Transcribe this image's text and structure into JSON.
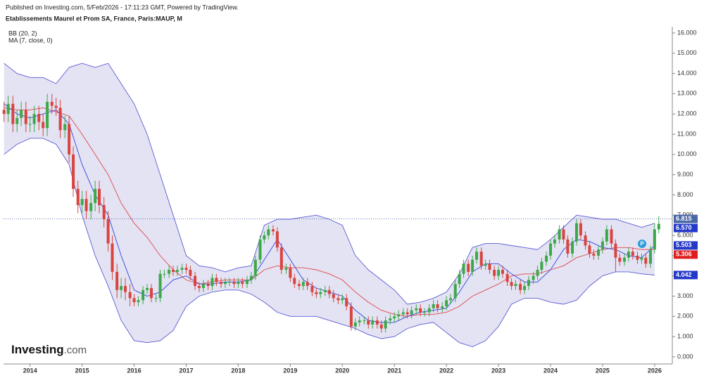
{
  "chart_data": {
    "type": "candlestick",
    "header": "Published on Investing.com, 5/Feb/2026 - 17:11:23 GMT, Powered by TradingView.",
    "title": "Etablissements Maurel et Prom SA, France, Paris:MAUP, M",
    "indicators": [
      "BB (20, 2)",
      "MA (7, close, 0)"
    ],
    "logo": "Investing",
    "logo_suffix": ".com",
    "up_color": "#3da84a",
    "down_color": "#d9443f",
    "x": [
      2013.5,
      2013.58,
      2013.67,
      2013.75,
      2013.83,
      2013.92,
      2014,
      2014.08,
      2014.17,
      2014.25,
      2014.33,
      2014.42,
      2014.5,
      2014.58,
      2014.67,
      2014.75,
      2014.83,
      2014.92,
      2015,
      2015.08,
      2015.17,
      2015.25,
      2015.33,
      2015.42,
      2015.5,
      2015.58,
      2015.67,
      2015.75,
      2015.83,
      2015.92,
      2016,
      2016.08,
      2016.17,
      2016.25,
      2016.33,
      2016.42,
      2016.5,
      2016.58,
      2016.67,
      2016.75,
      2016.83,
      2016.92,
      2017,
      2017.08,
      2017.17,
      2017.25,
      2017.33,
      2017.42,
      2017.5,
      2017.58,
      2017.67,
      2017.75,
      2017.83,
      2017.92,
      2018,
      2018.08,
      2018.17,
      2018.25,
      2018.33,
      2018.42,
      2018.5,
      2018.58,
      2018.67,
      2018.75,
      2018.83,
      2018.92,
      2019,
      2019.08,
      2019.17,
      2019.25,
      2019.33,
      2019.42,
      2019.5,
      2019.58,
      2019.67,
      2019.75,
      2019.83,
      2019.92,
      2020,
      2020.08,
      2020.17,
      2020.25,
      2020.33,
      2020.42,
      2020.5,
      2020.58,
      2020.67,
      2020.75,
      2020.83,
      2020.92,
      2021,
      2021.08,
      2021.17,
      2021.25,
      2021.33,
      2021.42,
      2021.5,
      2021.58,
      2021.67,
      2021.75,
      2021.83,
      2021.92,
      2022,
      2022.08,
      2022.17,
      2022.25,
      2022.33,
      2022.42,
      2022.5,
      2022.58,
      2022.67,
      2022.75,
      2022.83,
      2022.92,
      2023,
      2023.08,
      2023.17,
      2023.25,
      2023.33,
      2023.42,
      2023.5,
      2023.58,
      2023.67,
      2023.75,
      2023.83,
      2023.92,
      2024,
      2024.08,
      2024.17,
      2024.25,
      2024.33,
      2024.42,
      2024.5,
      2024.58,
      2024.67,
      2024.75,
      2024.83,
      2024.92,
      2025,
      2025.08,
      2025.17,
      2025.25,
      2025.33,
      2025.42,
      2025.5,
      2025.58,
      2025.67,
      2025.75,
      2025.83,
      2025.92,
      2026,
      2026.08
    ],
    "open": [
      12.2,
      12.0,
      12.5,
      11.5,
      11.8,
      12.2,
      11.5,
      11.5,
      12.0,
      11.6,
      11.3,
      12.6,
      12.4,
      12.3,
      11.2,
      11.5,
      10.0,
      8.3,
      7.5,
      7.8,
      7.2,
      7.6,
      8.3,
      7.5,
      6.8,
      5.6,
      4.2,
      3.3,
      3.5,
      3.2,
      2.9,
      2.7,
      2.8,
      3.3,
      3.4,
      2.9,
      2.9,
      4.1,
      4.1,
      4.3,
      4.2,
      4.3,
      4.4,
      4.3,
      4.0,
      3.5,
      3.4,
      3.6,
      3.5,
      3.9,
      3.7,
      3.6,
      3.7,
      3.7,
      3.6,
      3.7,
      3.6,
      3.8,
      4.0,
      4.8,
      5.8,
      6.0,
      6.3,
      6.2,
      5.4,
      4.3,
      4.4,
      3.9,
      3.6,
      3.5,
      3.7,
      3.5,
      3.2,
      3.1,
      3.2,
      3.3,
      3.1,
      2.9,
      2.8,
      2.9,
      2.5,
      1.5,
      1.7,
      1.8,
      1.8,
      1.6,
      1.8,
      1.6,
      1.4,
      1.8,
      1.9,
      2.0,
      2.1,
      2.2,
      2.1,
      2.3,
      2.4,
      2.2,
      2.2,
      2.4,
      2.6,
      2.4,
      2.5,
      2.8,
      2.9,
      3.6,
      4.1,
      4.6,
      4.2,
      4.8,
      5.2,
      4.5,
      4.6,
      4.3,
      4.0,
      4.3,
      4.1,
      3.7,
      3.5,
      3.6,
      3.3,
      3.5,
      3.8,
      4.0,
      4.3,
      4.7,
      5.0,
      5.6,
      5.8,
      6.3,
      5.8,
      5.1,
      5.7,
      6.6,
      6.0,
      5.5,
      5.1,
      5.0,
      5.3,
      5.7,
      6.3,
      5.6,
      4.9,
      4.7,
      4.9,
      5.2,
      5.0,
      4.8,
      4.9,
      4.6,
      5.3,
      6.3
    ],
    "high": [
      12.6,
      12.9,
      12.9,
      12.2,
      12.6,
      12.6,
      11.9,
      12.4,
      12.4,
      12.0,
      13.0,
      13.0,
      12.8,
      12.7,
      11.9,
      11.9,
      10.4,
      8.7,
      8.2,
      8.2,
      8.0,
      8.7,
      8.7,
      7.9,
      7.2,
      6.0,
      4.6,
      3.9,
      3.9,
      3.6,
      3.1,
      3.0,
      3.5,
      3.6,
      3.6,
      3.1,
      4.3,
      4.3,
      4.5,
      4.5,
      4.5,
      4.6,
      4.6,
      4.5,
      4.2,
      3.7,
      3.8,
      3.8,
      4.1,
      4.1,
      3.9,
      3.9,
      3.9,
      3.9,
      3.9,
      3.9,
      4.0,
      4.2,
      5.0,
      6.0,
      6.2,
      6.5,
      6.5,
      6.4,
      5.6,
      4.6,
      4.6,
      4.1,
      3.8,
      3.9,
      3.9,
      3.7,
      3.4,
      3.4,
      3.5,
      3.5,
      3.3,
      3.1,
      3.1,
      3.1,
      2.7,
      1.9,
      2.0,
      2.0,
      2.0,
      2.0,
      2.0,
      1.8,
      2.0,
      2.1,
      2.2,
      2.3,
      2.4,
      2.4,
      2.5,
      2.6,
      2.6,
      2.4,
      2.6,
      2.8,
      2.8,
      2.7,
      3.0,
      3.1,
      3.8,
      4.3,
      4.8,
      4.8,
      5.0,
      5.4,
      5.4,
      4.8,
      4.8,
      4.5,
      4.5,
      4.5,
      4.3,
      3.9,
      3.8,
      3.8,
      3.7,
      4.0,
      4.2,
      4.5,
      4.9,
      5.2,
      5.8,
      6.0,
      6.5,
      6.5,
      6.0,
      5.9,
      6.8,
      6.8,
      6.2,
      5.7,
      5.3,
      5.5,
      5.9,
      6.5,
      6.5,
      5.8,
      5.1,
      5.1,
      5.4,
      5.4,
      5.2,
      5.1,
      5.1,
      5.5,
      6.6,
      6.95
    ],
    "low": [
      11.6,
      11.6,
      11.1,
      11.1,
      11.4,
      11.1,
      11.1,
      11.1,
      11.2,
      10.9,
      10.9,
      12.0,
      11.9,
      10.8,
      10.8,
      9.6,
      7.9,
      7.1,
      7.1,
      6.8,
      6.8,
      7.2,
      7.1,
      6.4,
      5.2,
      3.8,
      2.9,
      2.9,
      2.8,
      2.5,
      2.5,
      2.5,
      2.6,
      3.1,
      2.7,
      2.7,
      2.7,
      3.9,
      3.9,
      4.0,
      4.0,
      4.1,
      4.1,
      3.8,
      3.3,
      3.2,
      3.2,
      3.3,
      3.3,
      3.5,
      3.4,
      3.4,
      3.5,
      3.4,
      3.4,
      3.4,
      3.4,
      3.6,
      3.8,
      4.6,
      5.6,
      5.8,
      6.0,
      5.2,
      4.1,
      4.1,
      3.7,
      3.4,
      3.3,
      3.3,
      3.3,
      3.0,
      2.9,
      2.9,
      3.0,
      2.9,
      2.7,
      2.6,
      2.6,
      2.3,
      1.3,
      1.3,
      1.5,
      1.6,
      1.4,
      1.4,
      1.4,
      1.2,
      1.2,
      1.6,
      1.7,
      1.8,
      1.9,
      1.9,
      1.9,
      2.1,
      2.0,
      2.0,
      2.0,
      2.2,
      2.2,
      2.2,
      2.3,
      2.6,
      2.7,
      3.4,
      3.9,
      4.0,
      4.0,
      4.6,
      4.3,
      4.3,
      4.1,
      3.8,
      3.8,
      3.9,
      3.5,
      3.3,
      3.3,
      3.1,
      3.1,
      3.3,
      3.6,
      3.8,
      4.1,
      4.5,
      4.8,
      5.4,
      5.6,
      5.6,
      4.9,
      4.9,
      5.5,
      5.8,
      5.3,
      4.9,
      4.8,
      4.8,
      5.1,
      5.5,
      5.4,
      4.2,
      4.5,
      4.5,
      4.7,
      4.8,
      4.6,
      4.6,
      4.4,
      4.4,
      5.1,
      6.1
    ],
    "close": [
      12.0,
      12.5,
      11.5,
      11.8,
      12.2,
      11.5,
      11.5,
      12.0,
      11.6,
      11.3,
      12.6,
      12.4,
      12.3,
      11.2,
      11.5,
      10.0,
      8.3,
      7.5,
      7.8,
      7.2,
      7.6,
      8.3,
      7.5,
      6.8,
      5.6,
      4.2,
      3.3,
      3.5,
      3.2,
      2.9,
      2.7,
      2.8,
      3.3,
      3.4,
      2.9,
      2.9,
      4.1,
      4.1,
      4.3,
      4.2,
      4.3,
      4.4,
      4.3,
      4.0,
      3.5,
      3.4,
      3.6,
      3.5,
      3.9,
      3.7,
      3.6,
      3.7,
      3.7,
      3.6,
      3.7,
      3.6,
      3.8,
      4.0,
      4.8,
      5.8,
      6.0,
      6.3,
      6.2,
      5.4,
      4.3,
      4.4,
      3.9,
      3.6,
      3.5,
      3.7,
      3.5,
      3.2,
      3.1,
      3.2,
      3.3,
      3.1,
      2.9,
      2.8,
      2.9,
      2.5,
      1.5,
      1.7,
      1.8,
      1.8,
      1.6,
      1.8,
      1.6,
      1.4,
      1.8,
      1.9,
      2.0,
      2.1,
      2.2,
      2.1,
      2.3,
      2.4,
      2.2,
      2.2,
      2.4,
      2.6,
      2.4,
      2.5,
      2.8,
      2.9,
      3.6,
      4.1,
      4.6,
      4.2,
      4.8,
      5.2,
      4.5,
      4.6,
      4.3,
      4.0,
      4.3,
      4.1,
      3.7,
      3.5,
      3.6,
      3.3,
      3.5,
      3.8,
      4.0,
      4.3,
      4.7,
      5.0,
      5.6,
      5.8,
      6.3,
      5.8,
      5.1,
      5.7,
      6.6,
      6.0,
      5.5,
      5.1,
      5.0,
      5.3,
      5.7,
      6.3,
      5.6,
      4.9,
      4.7,
      4.9,
      5.2,
      5.0,
      4.8,
      4.9,
      4.6,
      5.3,
      6.3,
      6.57
    ],
    "close_label": "6.570",
    "close_label_color": "#2438c9",
    "line_x": [
      2013.5,
      2013.75,
      2014,
      2014.25,
      2014.5,
      2014.75,
      2015,
      2015.25,
      2015.5,
      2015.75,
      2016,
      2016.25,
      2016.5,
      2016.75,
      2017,
      2017.25,
      2017.5,
      2017.75,
      2018,
      2018.25,
      2018.5,
      2018.75,
      2019,
      2019.25,
      2019.5,
      2019.75,
      2020,
      2020.25,
      2020.5,
      2020.75,
      2021,
      2021.25,
      2021.5,
      2021.75,
      2022,
      2022.25,
      2022.5,
      2022.75,
      2023,
      2023.25,
      2023.5,
      2023.75,
      2024,
      2024.25,
      2024.5,
      2024.75,
      2025,
      2025.25,
      2025.5,
      2025.75,
      2026
    ],
    "band_fill": "#e3e3f3",
    "bb_upper": {
      "color": "#5b5bd6",
      "values": [
        14.5,
        14.0,
        13.8,
        13.8,
        13.5,
        14.3,
        14.5,
        14.3,
        14.5,
        13.5,
        12.5,
        11.0,
        9.0,
        7.0,
        5.0,
        4.5,
        4.4,
        4.2,
        4.4,
        4.5,
        6.5,
        6.8,
        6.8,
        6.9,
        7.0,
        6.8,
        6.5,
        5.0,
        4.3,
        3.8,
        3.3,
        2.6,
        2.7,
        2.9,
        3.2,
        4.1,
        5.4,
        5.6,
        5.6,
        5.5,
        5.4,
        5.3,
        5.8,
        6.4,
        7.0,
        6.9,
        6.8,
        6.8,
        6.6,
        6.4,
        6.6
      ]
    },
    "bb_lower": {
      "color": "#5b5bd6",
      "values": [
        10.0,
        10.5,
        10.8,
        10.8,
        10.5,
        9.5,
        7.0,
        5.0,
        3.5,
        1.8,
        0.8,
        0.7,
        0.8,
        1.3,
        2.5,
        3.0,
        3.2,
        3.3,
        3.3,
        3.1,
        2.7,
        2.2,
        2.0,
        2.0,
        2.0,
        1.8,
        1.6,
        1.4,
        1.1,
        0.9,
        1.0,
        1.4,
        1.6,
        1.7,
        1.2,
        0.7,
        0.5,
        0.8,
        1.5,
        2.6,
        2.9,
        2.9,
        2.7,
        2.6,
        2.8,
        3.5,
        4.0,
        4.2,
        4.2,
        4.1,
        4.042
      ],
      "last_label": "4.042",
      "label_color": "#2438c9"
    },
    "bb_basis": {
      "color": "#e04848",
      "values": [
        12.3,
        12.2,
        12.2,
        12.3,
        12.1,
        11.9,
        11.0,
        10.0,
        9.0,
        7.6,
        6.6,
        5.9,
        5.0,
        4.3,
        3.8,
        3.6,
        3.7,
        3.8,
        3.8,
        3.8,
        4.3,
        4.5,
        4.4,
        4.4,
        4.3,
        4.1,
        3.8,
        3.2,
        2.7,
        2.3,
        2.1,
        2.0,
        2.1,
        2.1,
        2.2,
        2.5,
        3.0,
        3.3,
        3.6,
        4.0,
        4.1,
        4.1,
        4.3,
        4.5,
        4.9,
        5.1,
        5.3,
        5.4,
        5.4,
        5.3,
        5.306
      ],
      "last_label": "5.306",
      "label_color": "#e01e1e"
    },
    "ma": {
      "color": "#3344e0",
      "values": [
        12.5,
        12.0,
        11.8,
        12.0,
        12.2,
        11.5,
        9.5,
        8.0,
        7.0,
        5.0,
        3.3,
        3.0,
        3.2,
        3.8,
        4.0,
        3.6,
        3.6,
        3.7,
        3.7,
        3.8,
        4.8,
        5.8,
        4.8,
        3.8,
        3.4,
        3.2,
        3.0,
        2.3,
        1.8,
        1.7,
        1.7,
        2.0,
        2.2,
        2.3,
        2.4,
        3.2,
        4.2,
        4.6,
        4.6,
        4.1,
        3.7,
        3.7,
        4.3,
        5.3,
        5.8,
        5.7,
        5.4,
        5.3,
        5.0,
        4.9,
        5.503
      ],
      "last_label": "5.503",
      "label_color": "#2438c9"
    },
    "price_line": {
      "value": 6.815,
      "label": "6.815",
      "color": "#4a68a8"
    },
    "xlim": [
      2013.49,
      2026.34
    ],
    "xticks": [
      2014,
      2015,
      2016,
      2017,
      2018,
      2019,
      2020,
      2021,
      2022,
      2023,
      2024,
      2025,
      2026
    ],
    "ylim": [
      -0.35,
      16.31
    ],
    "yticks": [
      {
        "value": 0,
        "label": "0.000"
      },
      {
        "value": 1,
        "label": "1.000"
      },
      {
        "value": 2,
        "label": "2.000"
      },
      {
        "value": 3,
        "label": "3.000"
      },
      {
        "value": 4,
        "label": "4.000"
      },
      {
        "value": 5,
        "label": "5.000"
      },
      {
        "value": 6,
        "label": "6.000"
      },
      {
        "value": 7,
        "label": "7.000"
      },
      {
        "value": 8,
        "label": "8.000"
      },
      {
        "value": 9,
        "label": "9.000"
      },
      {
        "value": 10,
        "label": "10.000"
      },
      {
        "value": 11,
        "label": "11.000"
      },
      {
        "value": 12,
        "label": "12.000"
      },
      {
        "value": 13,
        "label": "13.000"
      },
      {
        "value": 14,
        "label": "14.000"
      },
      {
        "value": 15,
        "label": "15.000"
      },
      {
        "value": 16,
        "label": "16.000"
      }
    ]
  }
}
